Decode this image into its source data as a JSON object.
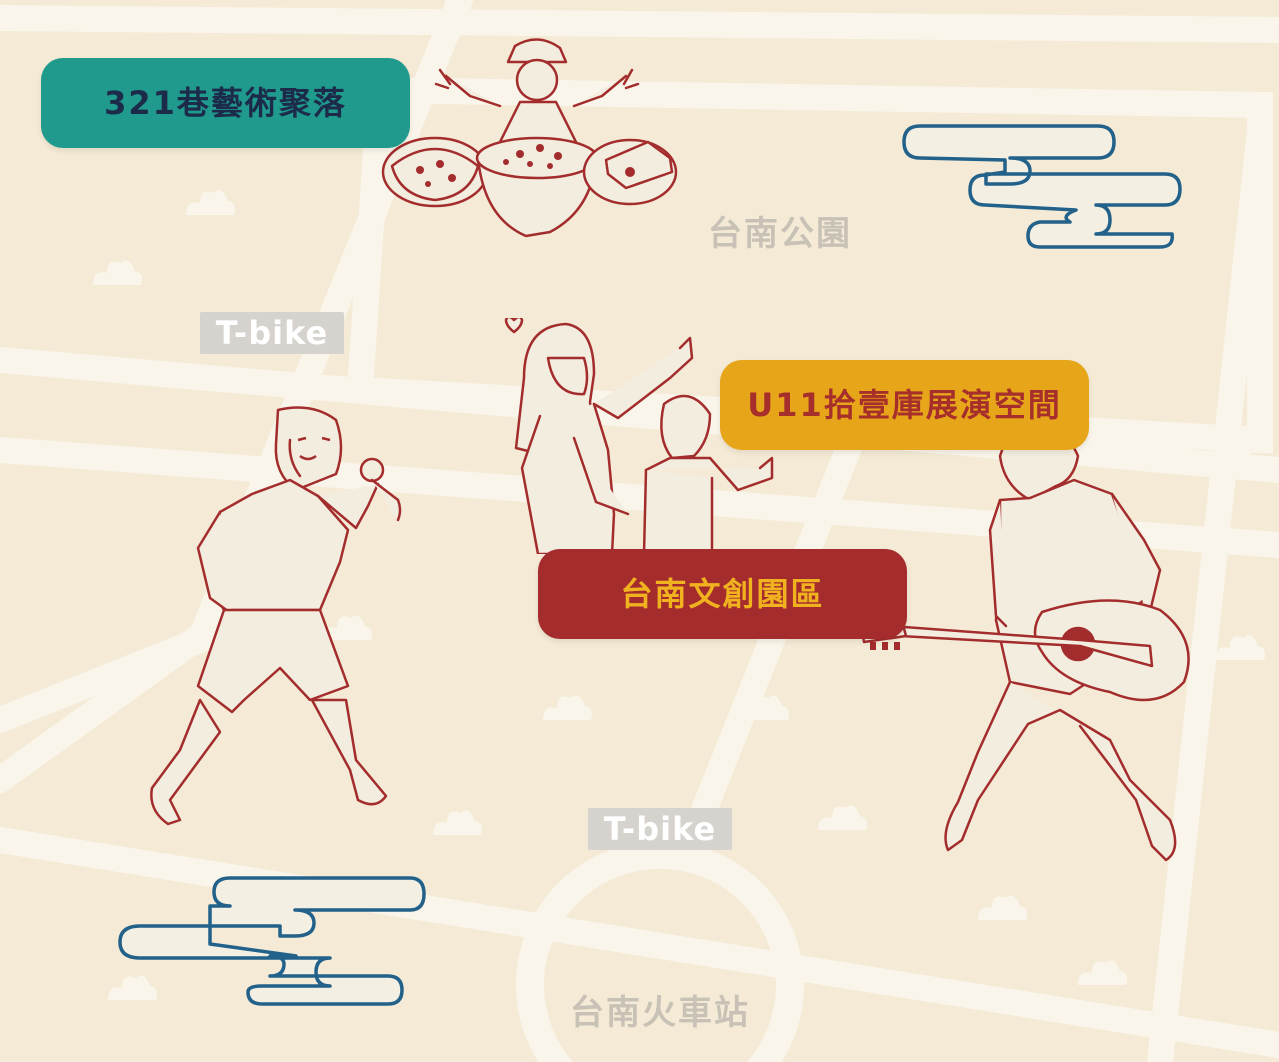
{
  "map": {
    "colors": {
      "background": "#f4ead5",
      "street": "#faf5ea",
      "place_label": "#c8c2b6",
      "line_art": "#a32c2c",
      "cloud_outline": "#22618a",
      "teal": "#1f9a8c",
      "gold": "#e7a61a",
      "red": "#a52c2c"
    },
    "highlights": [
      {
        "label": "321巷藝術聚落",
        "style": "teal"
      },
      {
        "label": "U11拾壹庫展演空間",
        "style": "gold"
      },
      {
        "label": "台南文創園區",
        "style": "red"
      }
    ],
    "places": {
      "park": "台南公園",
      "station": "台南火車站"
    },
    "tbike": [
      "T-bike",
      "T-bike"
    ],
    "illustrations": [
      {
        "icon": "food-vendor-with-dishes-illustration"
      },
      {
        "icon": "singer-with-microphone-illustration"
      },
      {
        "icon": "mother-and-child-thumbs-up-illustration"
      },
      {
        "icon": "guitarist-illustration"
      },
      {
        "icon": "auspicious-cloud-icon"
      },
      {
        "icon": "auspicious-cloud-icon"
      },
      {
        "icon": "flower-sprig-icon"
      }
    ]
  }
}
